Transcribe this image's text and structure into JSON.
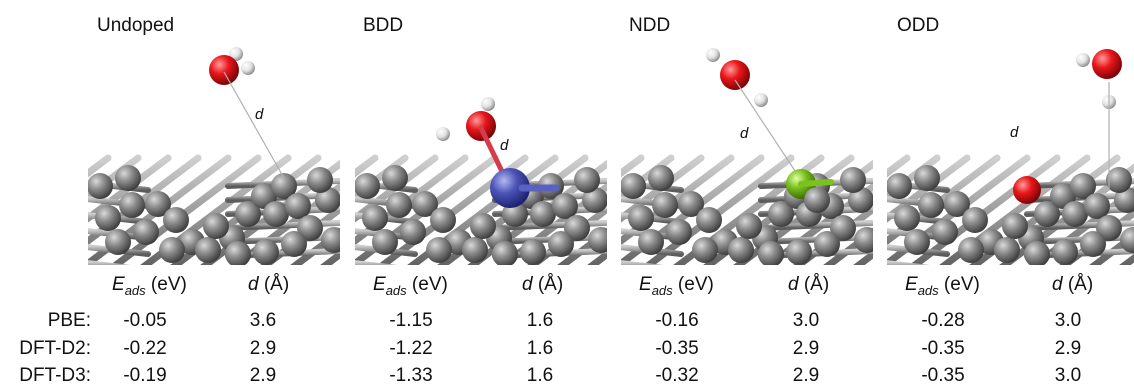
{
  "panels": [
    {
      "title": "Undoped",
      "dopant": "none",
      "distance_label": "d"
    },
    {
      "title": "BDD",
      "dopant": "B",
      "distance_label": "d"
    },
    {
      "title": "NDD",
      "dopant": "N",
      "distance_label": "d"
    },
    {
      "title": "ODD",
      "dopant": "O",
      "distance_label": "d"
    }
  ],
  "columns": {
    "energy_symbol": "E",
    "energy_subscript": "ads",
    "energy_unit": "(eV)",
    "distance_symbol": "d",
    "distance_unit": "(Å)"
  },
  "rows": [
    {
      "method": "PBE:",
      "values": [
        [
          "-0.05",
          "3.6"
        ],
        [
          "-1.15",
          "1.6"
        ],
        [
          "-0.16",
          "3.0"
        ],
        [
          "-0.28",
          "3.0"
        ]
      ]
    },
    {
      "method": "DFT-D2:",
      "values": [
        [
          "-0.22",
          "2.9"
        ],
        [
          "-1.22",
          "1.6"
        ],
        [
          "-0.35",
          "2.9"
        ],
        [
          "-0.35",
          "2.9"
        ]
      ]
    },
    {
      "method": "DFT-D3:",
      "values": [
        [
          "-0.19",
          "2.9"
        ],
        [
          "-1.33",
          "1.6"
        ],
        [
          "-0.32",
          "2.9"
        ],
        [
          "-0.35",
          "3.0"
        ]
      ]
    }
  ],
  "colors": {
    "carbon": "#8a8a8a",
    "oxygen": "#e8161a",
    "hydrogen": "#e6e6e6",
    "boron": "#4c55b8",
    "nitrogen": "#7bc21e",
    "bond": "#a0a0a0"
  }
}
